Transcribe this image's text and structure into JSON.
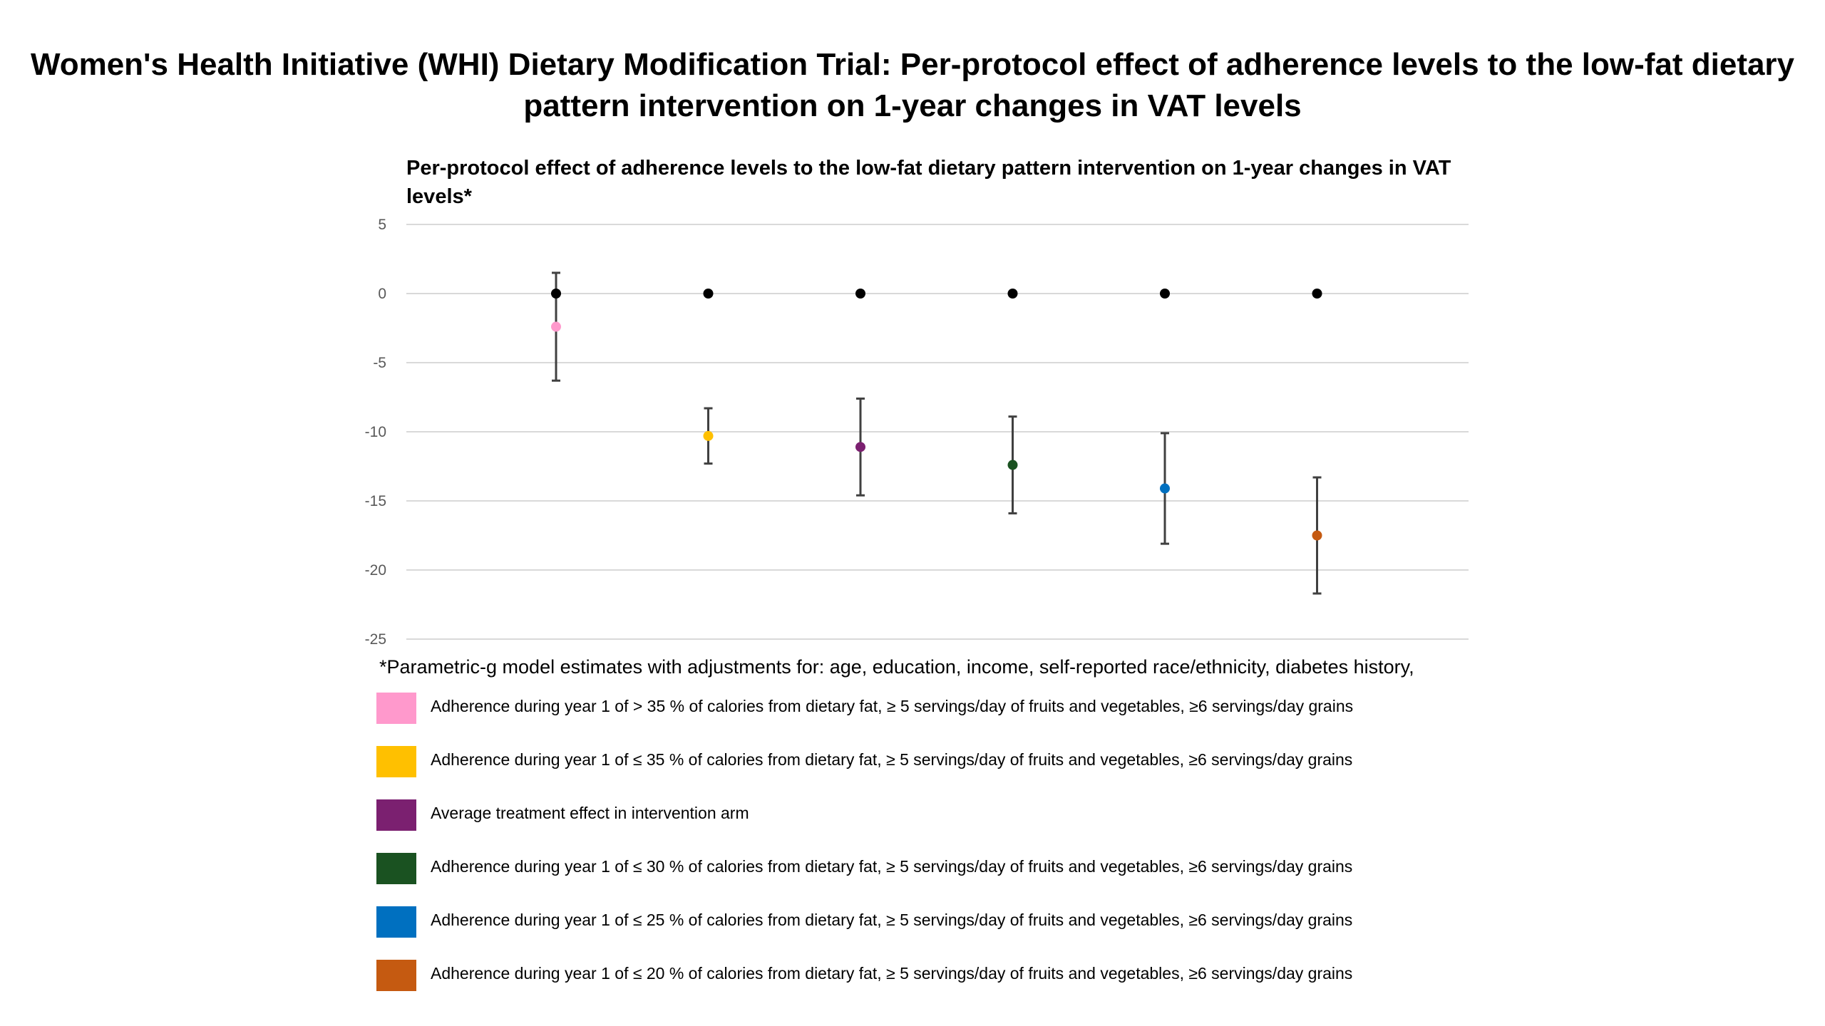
{
  "title": "Women's Health Initiative (WHI) Dietary Modification Trial: Per-protocol effect of adherence levels to the low-fat dietary pattern intervention on 1-year changes in VAT levels",
  "chart_data": {
    "type": "scatter",
    "title": "Per-protocol effect of adherence levels to the low-fat dietary pattern intervention on 1-year changes in VAT levels*",
    "ylim": [
      -25,
      5
    ],
    "y_ticks": [
      5,
      0,
      -5,
      -10,
      -15,
      -20,
      -25
    ],
    "grid": true,
    "reference_points": {
      "color": "#000000",
      "values": [
        0,
        0,
        0,
        0,
        0,
        0
      ]
    },
    "series": [
      {
        "label": "Adherence during year 1 of > 35 % of calories from dietary fat, ≥ 5 servings/day of fruits and vegetables, ≥6 servings/day grains",
        "color": "#FF99CC",
        "value": -2.4,
        "ci_low": -6.3,
        "ci_high": 1.5
      },
      {
        "label": "Adherence during year 1 of ≤ 35 % of calories from dietary fat, ≥ 5 servings/day of fruits and vegetables, ≥6 servings/day grains",
        "color": "#FFC000",
        "value": -10.3,
        "ci_low": -12.3,
        "ci_high": -8.3
      },
      {
        "label": "Average treatment effect in intervention arm",
        "color": "#7B2070",
        "value": -11.1,
        "ci_low": -14.6,
        "ci_high": -7.6
      },
      {
        "label": "Adherence during year 1 of ≤ 30 % of calories from dietary fat, ≥ 5 servings/day of fruits and vegetables, ≥6 servings/day grains",
        "color": "#1A5221",
        "value": -12.4,
        "ci_low": -15.9,
        "ci_high": -8.9
      },
      {
        "label": "Adherence during year 1 of ≤ 25 % of calories from dietary fat, ≥ 5 servings/day of fruits and vegetables, ≥6 servings/day grains",
        "color": "#0070C0",
        "value": -14.1,
        "ci_low": -18.1,
        "ci_high": -10.1
      },
      {
        "label": "Adherence during year 1 of ≤ 20 % of calories from dietary fat, ≥ 5 servings/day of fruits and vegetables, ≥6 servings/day grains",
        "color": "#C55A11",
        "value": -17.5,
        "ci_low": -21.7,
        "ci_high": -13.3
      }
    ]
  },
  "footnote": "*Parametric-g model estimates with adjustments for: age, education, income, self-reported race/ethnicity, diabetes history,"
}
